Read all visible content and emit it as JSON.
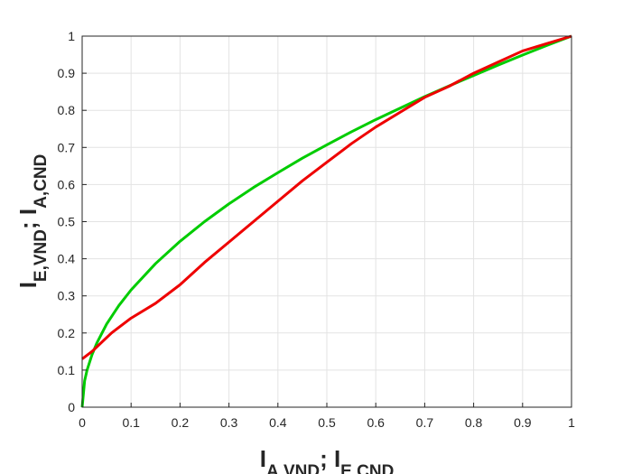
{
  "chart_data": {
    "type": "line",
    "xlabel": [
      "I",
      "A,VND",
      "; I",
      "E,CND"
    ],
    "ylabel": [
      "I",
      "E,VND",
      "; I",
      "A,CND"
    ],
    "xlim": [
      0,
      1
    ],
    "ylim": [
      0,
      1
    ],
    "xticks": [
      0,
      0.1,
      0.2,
      0.3,
      0.4,
      0.5,
      0.6,
      0.7,
      0.8,
      0.9,
      1
    ],
    "yticks": [
      0,
      0.1,
      0.2,
      0.3,
      0.4,
      0.5,
      0.6,
      0.7,
      0.8,
      0.9,
      1
    ],
    "grid": true,
    "series": [
      {
        "color": "#00cc00",
        "x": [
          0,
          0.005,
          0.01,
          0.02,
          0.03,
          0.05,
          0.075,
          0.1,
          0.15,
          0.2,
          0.25,
          0.3,
          0.35,
          0.4,
          0.45,
          0.5,
          0.55,
          0.6,
          0.65,
          0.7,
          0.75,
          0.8,
          0.85,
          0.9,
          0.95,
          1
        ],
        "values": [
          0,
          0.071,
          0.1,
          0.141,
          0.173,
          0.224,
          0.274,
          0.316,
          0.387,
          0.447,
          0.5,
          0.548,
          0.592,
          0.632,
          0.671,
          0.707,
          0.742,
          0.775,
          0.806,
          0.837,
          0.866,
          0.894,
          0.922,
          0.949,
          0.975,
          1
        ]
      },
      {
        "color": "#ee0000",
        "x": [
          0,
          0.02,
          0.06,
          0.1,
          0.15,
          0.2,
          0.25,
          0.3,
          0.35,
          0.4,
          0.45,
          0.5,
          0.55,
          0.6,
          0.65,
          0.7,
          0.75,
          0.8,
          0.85,
          0.9,
          0.95,
          1
        ],
        "values": [
          0.13,
          0.15,
          0.2,
          0.24,
          0.28,
          0.33,
          0.39,
          0.445,
          0.5,
          0.555,
          0.61,
          0.66,
          0.71,
          0.755,
          0.795,
          0.835,
          0.865,
          0.9,
          0.93,
          0.96,
          0.98,
          1
        ]
      }
    ]
  }
}
